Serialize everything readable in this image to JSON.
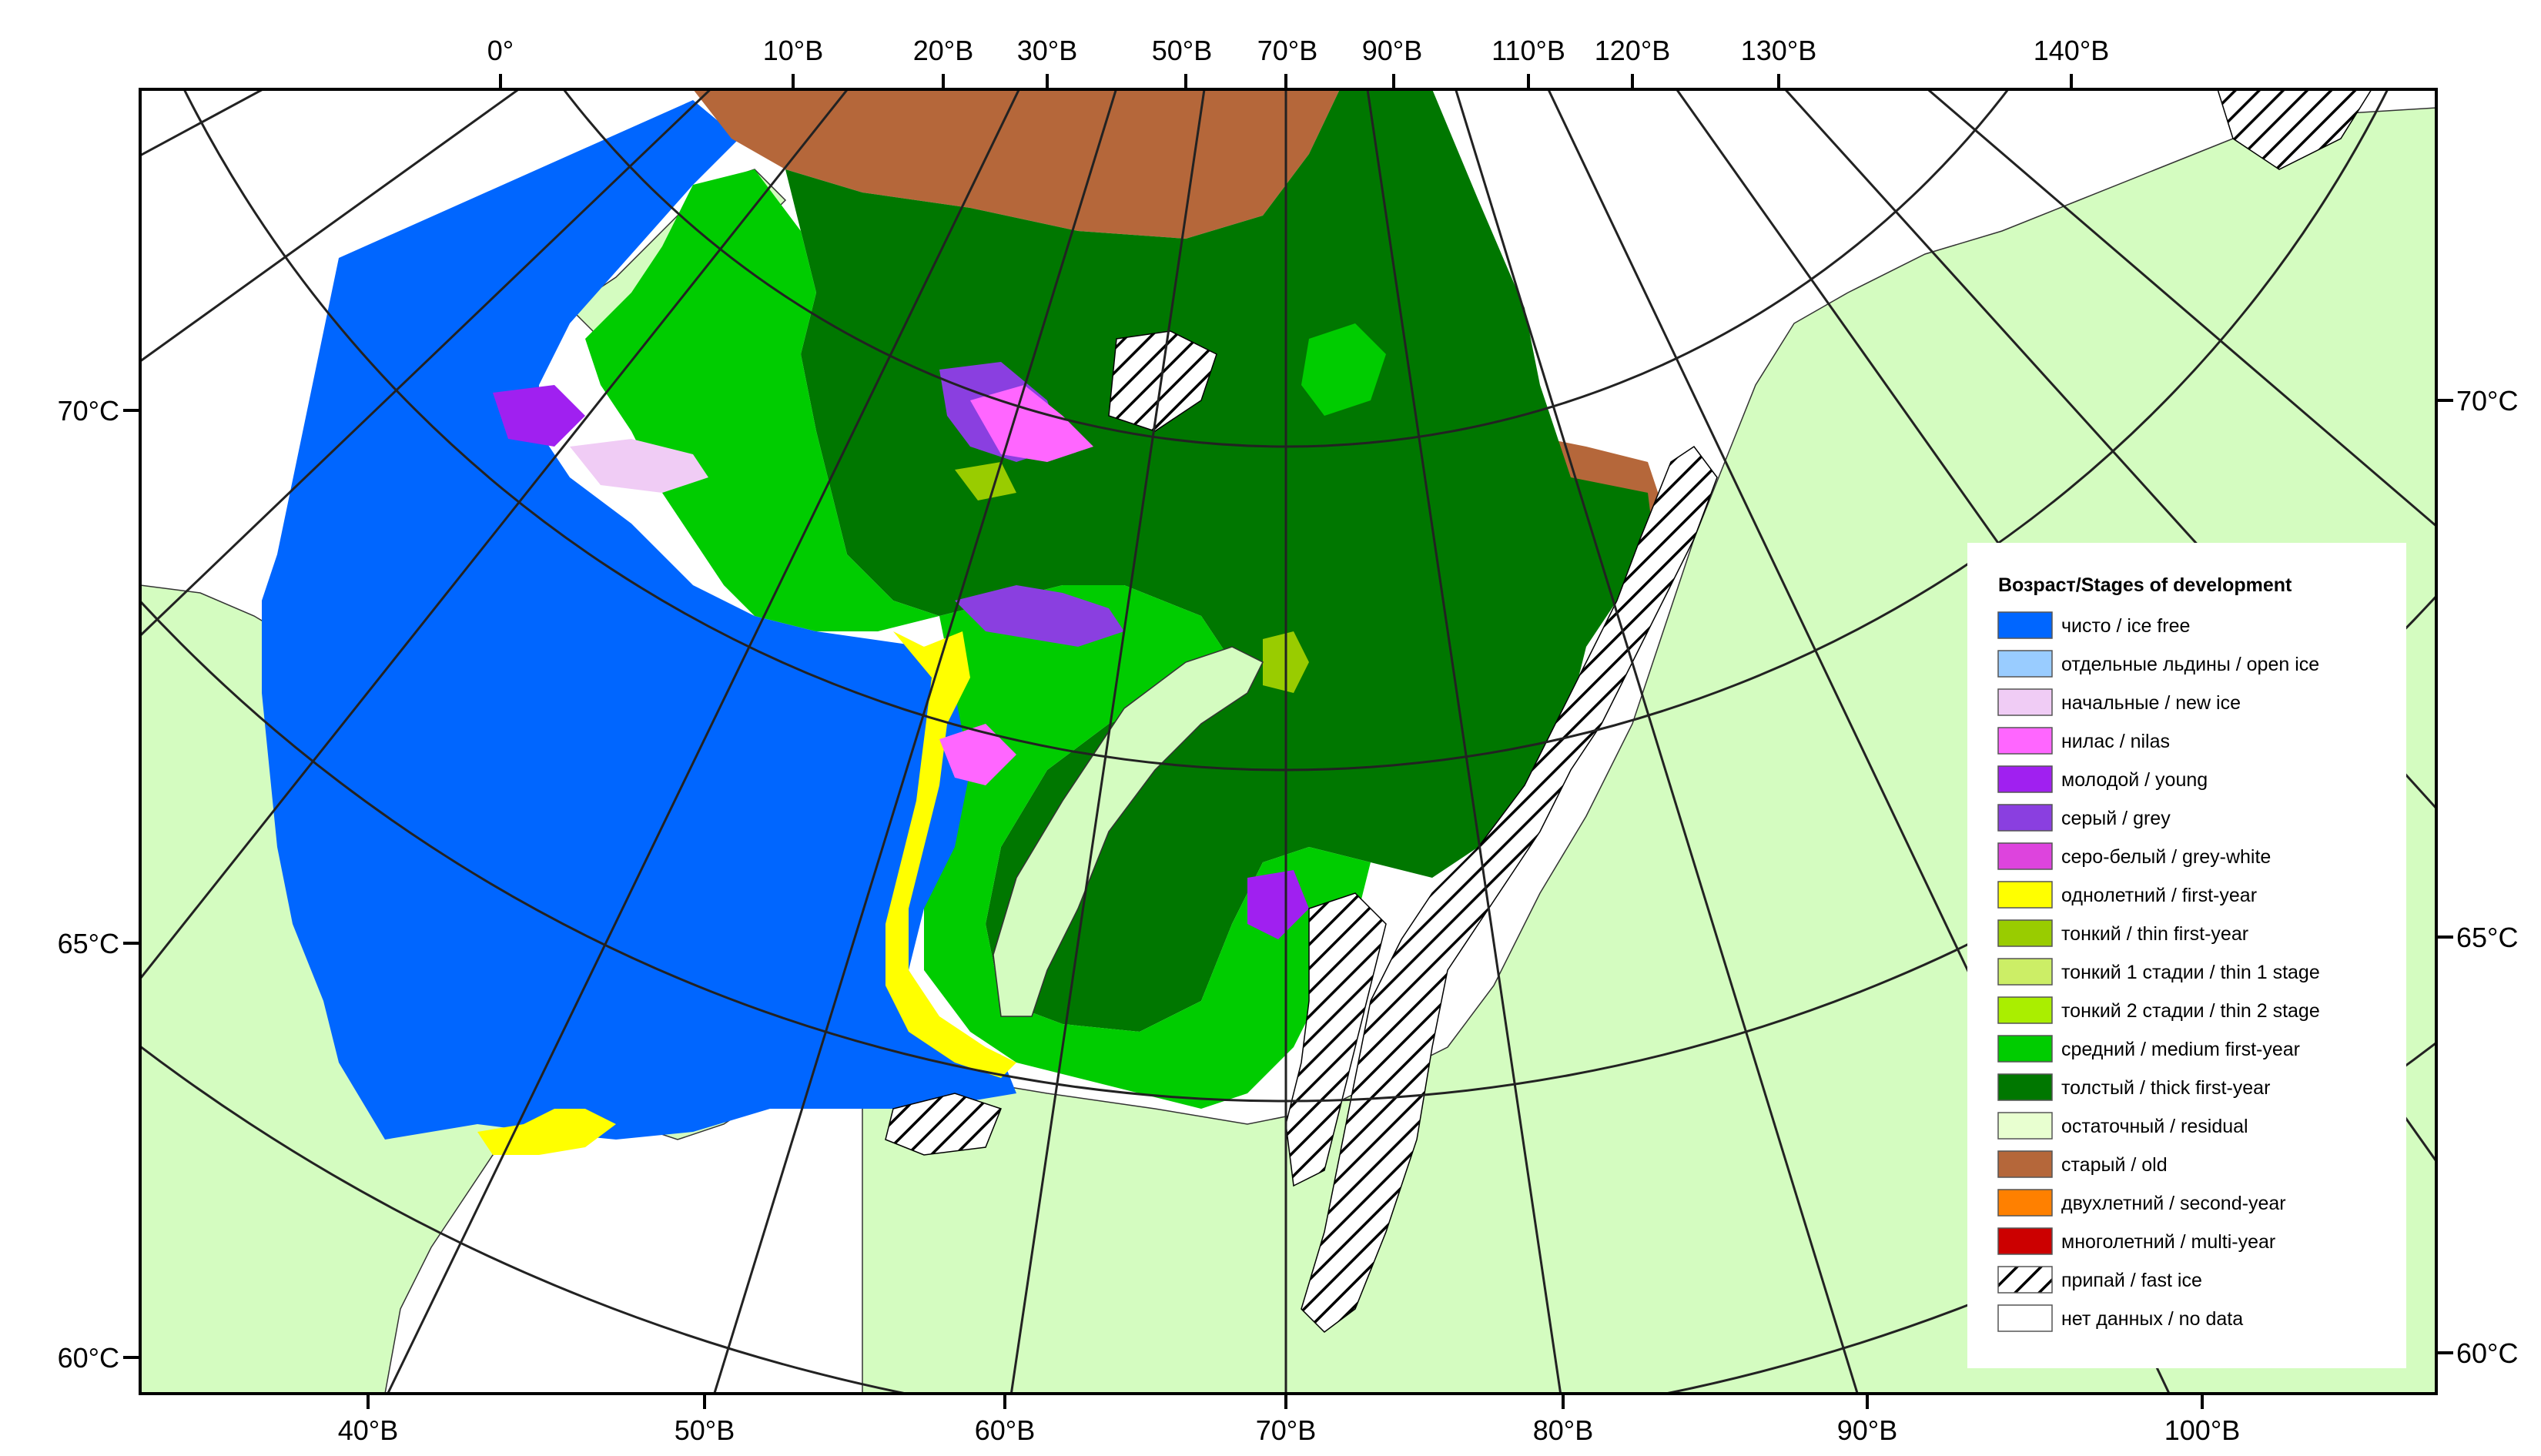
{
  "map": {
    "top_longitude_labels": [
      "0°",
      "10°В",
      "20°В",
      "30°В",
      "50°В",
      "70°В",
      "90°В",
      "110°В",
      "120°В",
      "130°В",
      "140°В"
    ],
    "bottom_longitude_labels": [
      "40°В",
      "50°В",
      "60°В",
      "70°В",
      "80°В",
      "90°В",
      "100°В"
    ],
    "left_latitude_labels": [
      "70°С",
      "65°С",
      "60°С"
    ],
    "right_latitude_labels": [
      "70°С",
      "65°С",
      "60°С"
    ]
  },
  "legend": {
    "title": "Возраст/Stages of development",
    "items": [
      {
        "label": "чисто / ice free",
        "color": "#0066ff",
        "pattern": "solid"
      },
      {
        "label": "отдельные льдины / open ice",
        "color": "#99ccff",
        "pattern": "solid"
      },
      {
        "label": "начальные / new ice",
        "color": "#f0ccf5",
        "pattern": "solid"
      },
      {
        "label": "нилас / nilas",
        "color": "#ff66ff",
        "pattern": "solid"
      },
      {
        "label": "молодой / young",
        "color": "#a020f0",
        "pattern": "solid"
      },
      {
        "label": "серый / grey",
        "color": "#8a3fe0",
        "pattern": "solid"
      },
      {
        "label": "серо-белый / grey-white",
        "color": "#dd44dd",
        "pattern": "solid"
      },
      {
        "label": "однолетний / first-year",
        "color": "#ffff00",
        "pattern": "solid"
      },
      {
        "label": "тонкий / thin first-year",
        "color": "#99cc00",
        "pattern": "solid"
      },
      {
        "label": "тонкий 1 стадии / thin 1 stage",
        "color": "#ccee66",
        "pattern": "solid"
      },
      {
        "label": "тонкий 2 стадии / thin 2 stage",
        "color": "#aaee00",
        "pattern": "solid"
      },
      {
        "label": "средний / medium first-year",
        "color": "#00cc00",
        "pattern": "solid"
      },
      {
        "label": "толстый / thick first-year",
        "color": "#007700",
        "pattern": "solid"
      },
      {
        "label": "остаточный / residual",
        "color": "#e8ffd0",
        "pattern": "solid"
      },
      {
        "label": "старый / old",
        "color": "#b5673a",
        "pattern": "solid"
      },
      {
        "label": "двухлетний / second-year",
        "color": "#ff8000",
        "pattern": "solid"
      },
      {
        "label": "многолетний / multi-year",
        "color": "#cc0000",
        "pattern": "solid"
      },
      {
        "label": "припай / fast ice",
        "color": "#ffffff",
        "pattern": "hatch"
      },
      {
        "label": "нет данных / no data",
        "color": "#ffffff",
        "pattern": "solid"
      }
    ]
  },
  "colors": {
    "land": "#d4fcc0",
    "ocean_free": "#0066ff",
    "no_data": "#ffffff",
    "graticule": "#222222"
  }
}
